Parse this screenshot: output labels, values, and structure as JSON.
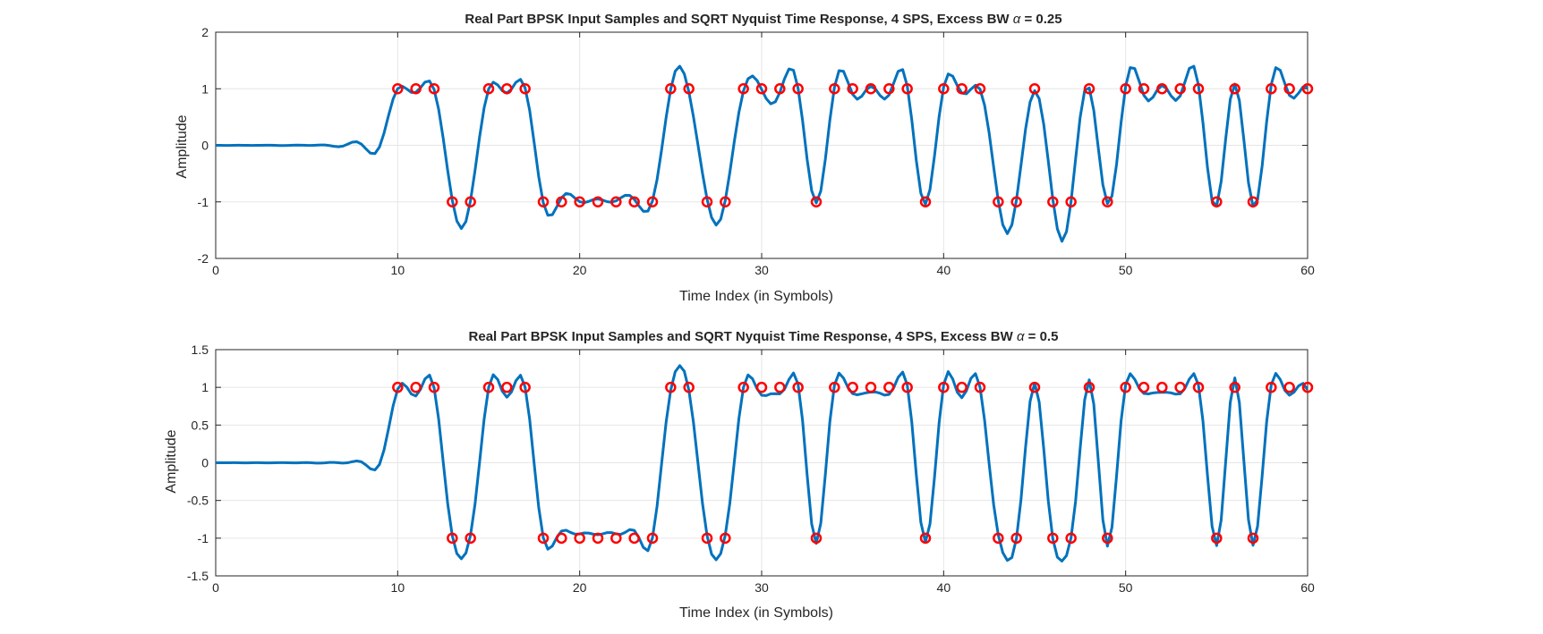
{
  "colors": {
    "curve": "#0072BD",
    "samples": "#FF0000",
    "axes": "#262626",
    "grid": "#E6E6E6",
    "background": "#FFFFFF"
  },
  "chart_data": [
    {
      "type": "line",
      "title_prefix": "Real Part BPSK Input Samples and SQRT Nyquist Time Response, 4 SPS, Excess BW ",
      "title_symbol": "α",
      "title_suffix": " = 0.25",
      "xlabel": "Time Index (in Symbols)",
      "ylabel": "Amplitude",
      "xlim": [
        0,
        60
      ],
      "ylim": [
        -2,
        2
      ],
      "x_ticks": [
        0,
        10,
        20,
        30,
        40,
        50,
        60
      ],
      "y_ticks": [
        -2,
        -1,
        0,
        1,
        2
      ],
      "y_tick_labels": [
        "-2",
        "-1",
        "0",
        "1",
        "2"
      ],
      "grid": true,
      "alpha": 0.25,
      "samples_per_symbol": 4,
      "sample_start": 10,
      "symbols": [
        1,
        1,
        1,
        -1,
        -1,
        1,
        1,
        1,
        -1,
        -1,
        -1,
        -1,
        -1,
        -1,
        -1,
        1,
        1,
        -1,
        -1,
        1,
        1,
        1,
        1,
        -1,
        1,
        1,
        1,
        1,
        1,
        -1,
        1,
        1,
        1,
        -1,
        -1,
        1,
        -1,
        -1,
        1,
        -1,
        1,
        1,
        1,
        1,
        1,
        -1,
        1,
        -1,
        1,
        1,
        1
      ],
      "series": [
        {
          "type": "line",
          "values_source": "filtered symbols"
        },
        {
          "type": "scatter",
          "marker": "circle",
          "values_source": "symbols"
        }
      ]
    },
    {
      "type": "line",
      "title_prefix": "Real Part BPSK Input Samples and SQRT Nyquist Time Response, 4 SPS, Excess BW ",
      "title_symbol": "α",
      "title_suffix": " = 0.5",
      "xlabel": "Time Index (in Symbols)",
      "ylabel": "Amplitude",
      "xlim": [
        0,
        60
      ],
      "ylim": [
        -1.5,
        1.5
      ],
      "x_ticks": [
        0,
        10,
        20,
        30,
        40,
        50,
        60
      ],
      "y_ticks": [
        -1.5,
        -1,
        -0.5,
        0,
        0.5,
        1,
        1.5
      ],
      "y_tick_labels": [
        "-1.5",
        "-1",
        "-0.5",
        "0",
        "0.5",
        "1",
        "1.5"
      ],
      "grid": true,
      "alpha": 0.5,
      "samples_per_symbol": 4,
      "sample_start": 10,
      "symbols": [
        1,
        1,
        1,
        -1,
        -1,
        1,
        1,
        1,
        -1,
        -1,
        -1,
        -1,
        -1,
        -1,
        -1,
        1,
        1,
        -1,
        -1,
        1,
        1,
        1,
        1,
        -1,
        1,
        1,
        1,
        1,
        1,
        -1,
        1,
        1,
        1,
        -1,
        -1,
        1,
        -1,
        -1,
        1,
        -1,
        1,
        1,
        1,
        1,
        1,
        -1,
        1,
        -1,
        1,
        1,
        1
      ],
      "series": [
        {
          "type": "line",
          "values_source": "filtered symbols"
        },
        {
          "type": "scatter",
          "marker": "circle",
          "values_source": "symbols"
        }
      ]
    }
  ]
}
